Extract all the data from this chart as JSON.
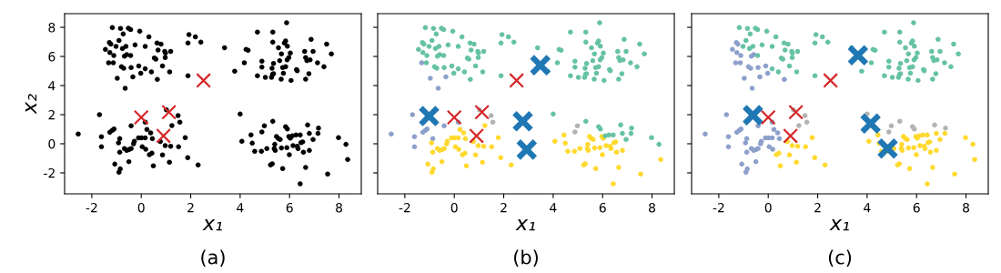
{
  "chart_data": [
    {
      "type": "scatter",
      "title": "(a)",
      "xlabel": "x₁",
      "ylabel": "x₂",
      "xlim": [
        -3.1,
        8.9
      ],
      "ylim": [
        -3.44,
        8.94
      ],
      "xticks": [
        -2,
        0,
        2,
        4,
        6,
        8
      ],
      "yticks": [
        -2,
        0,
        2,
        4,
        6,
        8
      ],
      "grid": false,
      "legend": false,
      "series": [
        {
          "type": "scatter",
          "marker": "circle",
          "color": "#000000",
          "x": [
            -1.17,
            -0.84,
            -0.52,
            -0.43,
            -0.06,
            -0.73,
            0.31,
            -0.9,
            -1.29,
            -1.23,
            -1.45,
            -1.02,
            -0.76,
            -0.62,
            -0.25,
            0.16,
            0.64,
            0.8,
            0.68,
            0.95,
            1.19,
            -1.27,
            -1.11,
            -0.68,
            -0.59,
            -0.43,
            0.53,
            0.59,
            0.97,
            0.98,
            -1.32,
            -1.13,
            -0.8,
            -0.71,
            -0.41,
            -0.1,
            0.16,
            0.86,
            0.41,
            1.15,
            -0.02,
            -0.34,
            -0.97,
            0.65,
            -0.65,
            1.93,
            2.19,
            1.89,
            2.41,
            1.89,
            3.37,
            5.88,
            4.7,
            5.32,
            5.84,
            5.79,
            5.32,
            5.55,
            5.91,
            6.87,
            7.5,
            7.69,
            4.24,
            4.32,
            5.67,
            6.03,
            6.61,
            6.95,
            4.88,
            5.35,
            5.6,
            5.9,
            5.97,
            5.84,
            5.72,
            6.65,
            6.7,
            6.83,
            7.13,
            7.39,
            6.28,
            6.31,
            4.17,
            3.78,
            4.88,
            5.29,
            4.7,
            5.02,
            5.27,
            5.31,
            5.66,
            6.06,
            6.65,
            6.78,
            5.75,
            5.35,
            -1.69,
            -2.55,
            -1.61,
            -1.61,
            -1.27,
            -1.17,
            -1.1,
            -0.87,
            -0.92,
            -0.87,
            -0.68,
            -0.59,
            -0.49,
            -0.41,
            -0.28,
            -0.31,
            -0.11,
            0.01,
            0.16,
            0.23,
            0.38,
            0.45,
            0.04,
            0.18,
            0.33,
            0.43,
            0.49,
            -0.5,
            -1.07,
            -0.85,
            -0.9,
            -0.41,
            0.16,
            1.02,
            1.49,
            1.56,
            1.24,
            0.77,
            0.97,
            1.19,
            1.51,
            1.78,
            0.86,
            1.14,
            1.88,
            2.3,
            4.0,
            4.07,
            4.44,
            4.49,
            4.59,
            4.86,
            4.98,
            4.88,
            5.08,
            5.32,
            5.47,
            5.55,
            5.62,
            5.4,
            5.38,
            5.42,
            5.67,
            5.89,
            5.84,
            5.91,
            5.97,
            6.03,
            6.11,
            6.26,
            6.43,
            6.14,
            5.99,
            6.31,
            6.46,
            6.53,
            6.34,
            6.56,
            6.8,
            6.73,
            6.8,
            6.95,
            7.15,
            7.17,
            7.98,
            8.28,
            8.35,
            7.54,
            6.65,
            6.43,
            5.72,
            5.3,
            5.23
          ],
          "values": [
            7.98,
            7.92,
            7.94,
            7.85,
            7.73,
            7.54,
            7.35,
            7.1,
            6.96,
            6.85,
            6.48,
            6.69,
            6.54,
            6.69,
            6.79,
            6.69,
            6.92,
            6.85,
            6.44,
            6.35,
            6.35,
            6.27,
            6.06,
            6.02,
            6.13,
            6.06,
            5.89,
            5.81,
            5.92,
            6.23,
            5.56,
            5.56,
            5.29,
            5.19,
            5.23,
            5.35,
            5.15,
            5.35,
            4.94,
            4.94,
            4.85,
            4.6,
            4.5,
            4.42,
            3.81,
            7.5,
            7.35,
            6.92,
            6.98,
            4.67,
            6.6,
            8.31,
            7.67,
            7.67,
            7.06,
            6.92,
            6.98,
            6.6,
            6.71,
            7.17,
            6.85,
            6.17,
            6.48,
            6.42,
            6.17,
            6.23,
            6.35,
            6.35,
            5.67,
            5.52,
            5.71,
            5.77,
            5.92,
            5.29,
            5.23,
            5.92,
            5.71,
            5.77,
            5.56,
            5.29,
            5.1,
            5.02,
            5.56,
            4.98,
            5.27,
            5.19,
            4.67,
            4.56,
            4.56,
            4.77,
            4.44,
            4.35,
            4.44,
            4.81,
            4.85,
            4.81,
            2.0,
            0.67,
            0.48,
            -0.21,
            0.79,
            0.92,
            1.02,
            0.35,
            0.06,
            -0.58,
            -0.33,
            -0.46,
            -0.4,
            -0.33,
            0.17,
            0.0,
            0.4,
            0.4,
            0.4,
            0.98,
            0.75,
            0.35,
            -0.21,
            -0.38,
            -0.75,
            -0.65,
            -1.52,
            -1.23,
            -1.4,
            -1.73,
            -1.96,
            1.23,
            1.48,
            2.33,
            1.94,
            1.48,
            1.25,
            0.15,
            -0.13,
            -0.17,
            -0.21,
            0.42,
            -0.77,
            -1.27,
            -0.96,
            -1.46,
            2.04,
            0.17,
            0.6,
            0.04,
            -0.52,
            -0.52,
            1.23,
            0.81,
            -0.33,
            1.54,
            0.5,
            0.35,
            0.29,
            -0.04,
            -0.33,
            -0.46,
            -0.29,
            -0.27,
            1.17,
            1.02,
            0.5,
            0.38,
            0.54,
            0.6,
            0.6,
            -0.13,
            -0.75,
            -0.17,
            0.08,
            0.13,
            -0.33,
            -0.58,
            -0.46,
            1.29,
            0.71,
            0.29,
            0.71,
            1.08,
            0.42,
            -0.04,
            -1.08,
            -2.08,
            -1.63,
            -2.75,
            -1.71,
            -1.38,
            -1.46
          ]
        },
        {
          "type": "scatter",
          "marker": "cross",
          "color": "#d62728",
          "x": [
            0.0,
            1.12,
            0.9,
            2.52
          ],
          "values": [
            1.81,
            2.17,
            0.54,
            4.35
          ]
        }
      ]
    },
    {
      "type": "scatter",
      "title": "(b)",
      "xlabel": "x₁",
      "xlim": [
        -3.1,
        8.9
      ],
      "ylim": [
        -3.44,
        8.94
      ],
      "xticks": [
        -2,
        0,
        2,
        4,
        6,
        8
      ],
      "yticks": [
        -2,
        0,
        2,
        4,
        6,
        8
      ],
      "tick_labels": "x",
      "grid": false,
      "legend": false,
      "series": [
        {
          "type": "scatter",
          "marker": "circle",
          "x": [
            -1.17,
            -0.84,
            -0.52,
            -0.43,
            -0.06,
            -0.73,
            0.31,
            -0.9,
            -1.29,
            -1.23,
            -1.45,
            -1.02,
            -0.76,
            -0.62,
            -0.25,
            0.16,
            0.64,
            0.8,
            0.68,
            0.95,
            1.19,
            -1.27,
            -1.11,
            -0.68,
            -0.59,
            -0.43,
            0.53,
            0.59,
            0.97,
            0.98,
            -1.32,
            -1.13,
            -0.8,
            -0.71,
            -0.41,
            -0.1,
            0.16,
            0.86,
            0.41,
            1.15,
            -0.02,
            -0.34,
            -0.97,
            0.65,
            -0.65,
            1.93,
            2.19,
            1.89,
            2.41,
            1.89,
            3.37,
            5.88,
            4.7,
            5.32,
            5.84,
            5.79,
            5.32,
            5.55,
            5.91,
            6.87,
            7.5,
            7.69,
            4.24,
            4.32,
            5.67,
            6.03,
            6.61,
            6.95,
            4.88,
            5.35,
            5.6,
            5.9,
            5.97,
            5.84,
            5.72,
            6.65,
            6.7,
            6.83,
            7.13,
            7.39,
            6.28,
            6.31,
            4.17,
            3.78,
            4.88,
            5.29,
            4.7,
            5.02,
            5.27,
            5.31,
            5.66,
            6.06,
            6.65,
            6.78,
            5.75,
            5.35,
            -1.69,
            -2.55,
            -1.61,
            -1.61,
            -1.27,
            -1.17,
            -1.1,
            -0.87,
            -0.92,
            -0.87,
            -0.68,
            -0.59,
            -0.49,
            -0.41,
            -0.28,
            -0.31,
            -0.11,
            0.01,
            0.16,
            0.23,
            0.38,
            0.45,
            0.04,
            0.18,
            0.33,
            0.43,
            0.49,
            -0.5,
            -1.07,
            -0.85,
            -0.9,
            -0.41,
            0.16,
            1.02,
            1.49,
            1.56,
            1.24,
            0.77,
            0.97,
            1.19,
            1.51,
            1.78,
            0.86,
            1.14,
            1.88,
            2.3,
            4.0,
            4.07,
            4.44,
            4.49,
            4.59,
            4.86,
            4.98,
            4.88,
            5.08,
            5.32,
            5.47,
            5.55,
            5.62,
            5.4,
            5.38,
            5.42,
            5.67,
            5.89,
            5.84,
            5.91,
            5.97,
            6.03,
            6.11,
            6.26,
            6.43,
            6.14,
            5.99,
            6.31,
            6.46,
            6.53,
            6.34,
            6.56,
            6.8,
            6.73,
            6.8,
            6.95,
            7.15,
            7.17,
            7.98,
            8.28,
            8.35,
            7.54,
            6.65,
            6.43,
            5.72,
            5.3,
            5.23
          ],
          "values": [
            7.98,
            7.92,
            7.94,
            7.85,
            7.73,
            7.54,
            7.35,
            7.1,
            6.96,
            6.85,
            6.48,
            6.69,
            6.54,
            6.69,
            6.79,
            6.69,
            6.92,
            6.85,
            6.44,
            6.35,
            6.35,
            6.27,
            6.06,
            6.02,
            6.13,
            6.06,
            5.89,
            5.81,
            5.92,
            6.23,
            5.56,
            5.56,
            5.29,
            5.19,
            5.23,
            5.35,
            5.15,
            5.35,
            4.94,
            4.94,
            4.85,
            4.6,
            4.5,
            4.42,
            3.81,
            7.5,
            7.35,
            6.92,
            6.98,
            4.67,
            6.6,
            8.31,
            7.67,
            7.67,
            7.06,
            6.92,
            6.98,
            6.6,
            6.71,
            7.17,
            6.85,
            6.17,
            6.48,
            6.42,
            6.17,
            6.23,
            6.35,
            6.35,
            5.67,
            5.52,
            5.71,
            5.77,
            5.92,
            5.29,
            5.23,
            5.92,
            5.71,
            5.77,
            5.56,
            5.29,
            5.1,
            5.02,
            5.56,
            4.98,
            5.27,
            5.19,
            4.67,
            4.56,
            4.56,
            4.77,
            4.44,
            4.35,
            4.44,
            4.81,
            4.85,
            4.81,
            2.0,
            0.67,
            0.48,
            -0.21,
            0.79,
            0.92,
            1.02,
            0.35,
            0.06,
            -0.58,
            -0.33,
            -0.46,
            -0.4,
            -0.33,
            0.17,
            0.0,
            0.4,
            0.4,
            0.4,
            0.98,
            0.75,
            0.35,
            -0.21,
            -0.38,
            -0.75,
            -0.65,
            -1.52,
            -1.23,
            -1.4,
            -1.73,
            -1.96,
            1.23,
            1.48,
            2.33,
            1.94,
            1.48,
            1.25,
            0.15,
            -0.13,
            -0.17,
            -0.21,
            0.42,
            -0.77,
            -1.27,
            -0.96,
            -1.46,
            2.04,
            0.17,
            0.6,
            0.04,
            -0.52,
            -0.52,
            1.23,
            0.81,
            -0.33,
            1.54,
            0.5,
            0.35,
            0.29,
            -0.04,
            -0.33,
            -0.46,
            -0.29,
            -0.27,
            1.17,
            1.02,
            0.5,
            0.38,
            0.54,
            0.6,
            0.6,
            -0.13,
            -0.75,
            -0.17,
            0.08,
            0.13,
            -0.33,
            -0.58,
            -0.46,
            1.29,
            0.71,
            0.29,
            0.71,
            1.08,
            0.42,
            -0.04,
            -1.08,
            -2.08,
            -1.63,
            -2.75,
            -1.71,
            -1.38,
            -1.46
          ],
          "colors": [
            "#66c2a5",
            "#66c2a5",
            "#66c2a5",
            "#66c2a5",
            "#66c2a5",
            "#66c2a5",
            "#66c2a5",
            "#66c2a5",
            "#66c2a5",
            "#66c2a5",
            "#66c2a5",
            "#66c2a5",
            "#66c2a5",
            "#66c2a5",
            "#66c2a5",
            "#66c2a5",
            "#66c2a5",
            "#66c2a5",
            "#66c2a5",
            "#66c2a5",
            "#66c2a5",
            "#66c2a5",
            "#66c2a5",
            "#66c2a5",
            "#66c2a5",
            "#66c2a5",
            "#66c2a5",
            "#66c2a5",
            "#66c2a5",
            "#66c2a5",
            "#8da0cb",
            "#66c2a5",
            "#66c2a5",
            "#66c2a5",
            "#66c2a5",
            "#66c2a5",
            "#66c2a5",
            "#66c2a5",
            "#66c2a5",
            "#66c2a5",
            "#66c2a5",
            "#8da0cb",
            "#8da0cb",
            "#66c2a5",
            "#8da0cb",
            "#66c2a5",
            "#66c2a5",
            "#66c2a5",
            "#66c2a5",
            "#66c2a5",
            "#66c2a5",
            "#66c2a5",
            "#66c2a5",
            "#66c2a5",
            "#66c2a5",
            "#66c2a5",
            "#66c2a5",
            "#66c2a5",
            "#66c2a5",
            "#66c2a5",
            "#66c2a5",
            "#66c2a5",
            "#66c2a5",
            "#66c2a5",
            "#66c2a5",
            "#66c2a5",
            "#66c2a5",
            "#66c2a5",
            "#66c2a5",
            "#66c2a5",
            "#66c2a5",
            "#66c2a5",
            "#66c2a5",
            "#66c2a5",
            "#66c2a5",
            "#66c2a5",
            "#66c2a5",
            "#66c2a5",
            "#66c2a5",
            "#66c2a5",
            "#66c2a5",
            "#66c2a5",
            "#66c2a5",
            "#66c2a5",
            "#66c2a5",
            "#66c2a5",
            "#66c2a5",
            "#66c2a5",
            "#66c2a5",
            "#66c2a5",
            "#66c2a5",
            "#66c2a5",
            "#66c2a5",
            "#66c2a5",
            "#66c2a5",
            "#66c2a5",
            "#8da0cb",
            "#8da0cb",
            "#8da0cb",
            "#8da0cb",
            "#8da0cb",
            "#8da0cb",
            "#8da0cb",
            "#8da0cb",
            "#ffd92f",
            "#ffd92f",
            "#ffd92f",
            "#ffd92f",
            "#ffd92f",
            "#ffd92f",
            "#ffd92f",
            "#ffd92f",
            "#ffd92f",
            "#ffd92f",
            "#ffd92f",
            "#ffd92f",
            "#ffd92f",
            "#ffd92f",
            "#ffd92f",
            "#ffd92f",
            "#ffd92f",
            "#ffd92f",
            "#ffd92f",
            "#ffd92f",
            "#ffd92f",
            "#ffd92f",
            "#ffd92f",
            "#8da0cb",
            "#8da0cb",
            "#b3b3b3",
            "#b3b3b3",
            "#b3b3b3",
            "#ffd92f",
            "#ffd92f",
            "#ffd92f",
            "#ffd92f",
            "#ffd92f",
            "#ffd92f",
            "#ffd92f",
            "#ffd92f",
            "#ffd92f",
            "#ffd92f",
            "#66c2a5",
            "#ffd92f",
            "#ffd92f",
            "#ffd92f",
            "#ffd92f",
            "#ffd92f",
            "#b3b3b3",
            "#b3b3b3",
            "#ffd92f",
            "#66c2a5",
            "#ffd92f",
            "#ffd92f",
            "#ffd92f",
            "#ffd92f",
            "#ffd92f",
            "#ffd92f",
            "#ffd92f",
            "#ffd92f",
            "#66c2a5",
            "#66c2a5",
            "#ffd92f",
            "#ffd92f",
            "#66c2a5",
            "#66c2a5",
            "#66c2a5",
            "#ffd92f",
            "#ffd92f",
            "#ffd92f",
            "#ffd92f",
            "#ffd92f",
            "#ffd92f",
            "#ffd92f",
            "#ffd92f",
            "#66c2a5",
            "#66c2a5",
            "#66c2a5",
            "#66c2a5",
            "#66c2a5",
            "#66c2a5",
            "#66c2a5",
            "#ffd92f",
            "#ffd92f",
            "#ffd92f",
            "#ffd92f",
            "#ffd92f",
            "#ffd92f",
            "#ffd92f"
          ]
        },
        {
          "type": "scatter",
          "marker": "cross",
          "color": "#d62728",
          "x": [
            0.0,
            1.12,
            0.9,
            2.52
          ],
          "values": [
            1.81,
            2.17,
            0.54,
            4.35
          ]
        },
        {
          "type": "scatter",
          "marker": "cross",
          "color": "#1f77b4",
          "x": [
            3.48,
            -1.02,
            2.77,
            2.93
          ],
          "values": [
            5.4,
            1.9,
            1.54,
            -0.4
          ]
        }
      ]
    },
    {
      "type": "scatter",
      "title": "(c)",
      "xlabel": "x₁",
      "xlim": [
        -3.1,
        8.9
      ],
      "ylim": [
        -3.44,
        8.94
      ],
      "xticks": [
        -2,
        0,
        2,
        4,
        6,
        8
      ],
      "yticks": [
        -2,
        0,
        2,
        4,
        6,
        8
      ],
      "tick_labels": "x",
      "grid": false,
      "legend": false,
      "series": [
        {
          "type": "scatter",
          "marker": "circle",
          "x": [
            -1.17,
            -0.84,
            -0.52,
            -0.43,
            -0.06,
            -0.73,
            0.31,
            -0.9,
            -1.29,
            -1.23,
            -1.45,
            -1.02,
            -0.76,
            -0.62,
            -0.25,
            0.16,
            0.64,
            0.8,
            0.68,
            0.95,
            1.19,
            -1.27,
            -1.11,
            -0.68,
            -0.59,
            -0.43,
            0.53,
            0.59,
            0.97,
            0.98,
            -1.32,
            -1.13,
            -0.8,
            -0.71,
            -0.41,
            -0.1,
            0.16,
            0.86,
            0.41,
            1.15,
            -0.02,
            -0.34,
            -0.97,
            0.65,
            -0.65,
            1.93,
            2.19,
            1.89,
            2.41,
            1.89,
            3.37,
            5.88,
            4.7,
            5.32,
            5.84,
            5.79,
            5.32,
            5.55,
            5.91,
            6.87,
            7.5,
            7.69,
            4.24,
            4.32,
            5.67,
            6.03,
            6.61,
            6.95,
            4.88,
            5.35,
            5.6,
            5.9,
            5.97,
            5.84,
            5.72,
            6.65,
            6.7,
            6.83,
            7.13,
            7.39,
            6.28,
            6.31,
            4.17,
            3.78,
            4.88,
            5.29,
            4.7,
            5.02,
            5.27,
            5.31,
            5.66,
            6.06,
            6.65,
            6.78,
            5.75,
            5.35,
            -1.69,
            -2.55,
            -1.61,
            -1.61,
            -1.27,
            -1.17,
            -1.1,
            -0.87,
            -0.92,
            -0.87,
            -0.68,
            -0.59,
            -0.49,
            -0.41,
            -0.28,
            -0.31,
            -0.11,
            0.01,
            0.16,
            0.23,
            0.38,
            0.45,
            0.04,
            0.18,
            0.33,
            0.43,
            0.49,
            -0.5,
            -1.07,
            -0.85,
            -0.9,
            -0.41,
            0.16,
            1.02,
            1.49,
            1.56,
            1.24,
            0.77,
            0.97,
            1.19,
            1.51,
            1.78,
            0.86,
            1.14,
            1.88,
            2.3,
            4.0,
            4.07,
            4.44,
            4.49,
            4.59,
            4.86,
            4.98,
            4.88,
            5.08,
            5.32,
            5.47,
            5.55,
            5.62,
            5.4,
            5.38,
            5.42,
            5.67,
            5.89,
            5.84,
            5.91,
            5.97,
            6.03,
            6.11,
            6.26,
            6.43,
            6.14,
            5.99,
            6.31,
            6.46,
            6.53,
            6.34,
            6.56,
            6.8,
            6.73,
            6.8,
            6.95,
            7.15,
            7.17,
            7.98,
            8.28,
            8.35,
            7.54,
            6.65,
            6.43,
            5.72,
            5.3,
            5.23
          ],
          "values": [
            7.98,
            7.92,
            7.94,
            7.85,
            7.73,
            7.54,
            7.35,
            7.1,
            6.96,
            6.85,
            6.48,
            6.69,
            6.54,
            6.69,
            6.79,
            6.69,
            6.92,
            6.85,
            6.44,
            6.35,
            6.35,
            6.27,
            6.06,
            6.02,
            6.13,
            6.06,
            5.89,
            5.81,
            5.92,
            6.23,
            5.56,
            5.56,
            5.29,
            5.19,
            5.23,
            5.35,
            5.15,
            5.35,
            4.94,
            4.94,
            4.85,
            4.6,
            4.5,
            4.42,
            3.81,
            7.5,
            7.35,
            6.92,
            6.98,
            4.67,
            6.6,
            8.31,
            7.67,
            7.67,
            7.06,
            6.92,
            6.98,
            6.6,
            6.71,
            7.17,
            6.85,
            6.17,
            6.48,
            6.42,
            6.17,
            6.23,
            6.35,
            6.35,
            5.67,
            5.52,
            5.71,
            5.77,
            5.92,
            5.29,
            5.23,
            5.92,
            5.71,
            5.77,
            5.56,
            5.29,
            5.1,
            5.02,
            5.56,
            4.98,
            5.27,
            5.19,
            4.67,
            4.56,
            4.56,
            4.77,
            4.44,
            4.35,
            4.44,
            4.81,
            4.85,
            4.81,
            2.0,
            0.67,
            0.48,
            -0.21,
            0.79,
            0.92,
            1.02,
            0.35,
            0.06,
            -0.58,
            -0.33,
            -0.46,
            -0.4,
            -0.33,
            0.17,
            0.0,
            0.4,
            0.4,
            0.4,
            0.98,
            0.75,
            0.35,
            -0.21,
            -0.38,
            -0.75,
            -0.65,
            -1.52,
            -1.23,
            -1.4,
            -1.73,
            -1.96,
            1.23,
            1.48,
            2.33,
            1.94,
            1.48,
            1.25,
            0.15,
            -0.13,
            -0.17,
            -0.21,
            0.42,
            -0.77,
            -1.27,
            -0.96,
            -1.46,
            2.04,
            0.17,
            0.6,
            0.04,
            -0.52,
            -0.52,
            1.23,
            0.81,
            -0.33,
            1.54,
            0.5,
            0.35,
            0.29,
            -0.04,
            -0.33,
            -0.46,
            -0.29,
            -0.27,
            1.17,
            1.02,
            0.5,
            0.38,
            0.54,
            0.6,
            0.6,
            -0.13,
            -0.75,
            -0.17,
            0.08,
            0.13,
            -0.33,
            -0.58,
            -0.46,
            1.29,
            0.71,
            0.29,
            0.71,
            1.08,
            0.42,
            -0.04,
            -1.08,
            -2.08,
            -1.63,
            -2.75,
            -1.71,
            -1.38,
            -1.46
          ],
          "colors": [
            "#66c2a5",
            "#66c2a5",
            "#66c2a5",
            "#66c2a5",
            "#66c2a5",
            "#66c2a5",
            "#66c2a5",
            "#66c2a5",
            "#8da0cb",
            "#8da0cb",
            "#8da0cb",
            "#66c2a5",
            "#66c2a5",
            "#66c2a5",
            "#66c2a5",
            "#66c2a5",
            "#66c2a5",
            "#66c2a5",
            "#66c2a5",
            "#66c2a5",
            "#66c2a5",
            "#8da0cb",
            "#8da0cb",
            "#8da0cb",
            "#8da0cb",
            "#66c2a5",
            "#66c2a5",
            "#66c2a5",
            "#66c2a5",
            "#66c2a5",
            "#8da0cb",
            "#8da0cb",
            "#8da0cb",
            "#8da0cb",
            "#8da0cb",
            "#8da0cb",
            "#66c2a5",
            "#66c2a5",
            "#66c2a5",
            "#66c2a5",
            "#8da0cb",
            "#8da0cb",
            "#8da0cb",
            "#8da0cb",
            "#8da0cb",
            "#66c2a5",
            "#66c2a5",
            "#66c2a5",
            "#66c2a5",
            "#66c2a5",
            "#66c2a5",
            "#66c2a5",
            "#66c2a5",
            "#66c2a5",
            "#66c2a5",
            "#66c2a5",
            "#66c2a5",
            "#66c2a5",
            "#66c2a5",
            "#66c2a5",
            "#66c2a5",
            "#66c2a5",
            "#66c2a5",
            "#66c2a5",
            "#66c2a5",
            "#66c2a5",
            "#66c2a5",
            "#66c2a5",
            "#66c2a5",
            "#66c2a5",
            "#66c2a5",
            "#66c2a5",
            "#66c2a5",
            "#66c2a5",
            "#66c2a5",
            "#66c2a5",
            "#66c2a5",
            "#66c2a5",
            "#66c2a5",
            "#66c2a5",
            "#66c2a5",
            "#66c2a5",
            "#66c2a5",
            "#66c2a5",
            "#66c2a5",
            "#66c2a5",
            "#66c2a5",
            "#66c2a5",
            "#66c2a5",
            "#66c2a5",
            "#66c2a5",
            "#66c2a5",
            "#66c2a5",
            "#66c2a5",
            "#66c2a5",
            "#66c2a5",
            "#8da0cb",
            "#8da0cb",
            "#8da0cb",
            "#8da0cb",
            "#8da0cb",
            "#8da0cb",
            "#8da0cb",
            "#8da0cb",
            "#8da0cb",
            "#8da0cb",
            "#8da0cb",
            "#8da0cb",
            "#8da0cb",
            "#8da0cb",
            "#8da0cb",
            "#8da0cb",
            "#8da0cb",
            "#8da0cb",
            "#8da0cb",
            "#8da0cb",
            "#8da0cb",
            "#8da0cb",
            "#8da0cb",
            "#8da0cb",
            "#ffd92f",
            "#ffd92f",
            "#ffd92f",
            "#8da0cb",
            "#8da0cb",
            "#8da0cb",
            "#8da0cb",
            "#8da0cb",
            "#8da0cb",
            "#b3b3b3",
            "#b3b3b3",
            "#b3b3b3",
            "#b3b3b3",
            "#ffd92f",
            "#ffd92f",
            "#ffd92f",
            "#ffd92f",
            "#ffd92f",
            "#ffd92f",
            "#ffd92f",
            "#ffd92f",
            "#ffd92f",
            "#b3b3b3",
            "#ffd92f",
            "#ffd92f",
            "#ffd92f",
            "#ffd92f",
            "#ffd92f",
            "#b3b3b3",
            "#b3b3b3",
            "#ffd92f",
            "#b3b3b3",
            "#ffd92f",
            "#ffd92f",
            "#ffd92f",
            "#ffd92f",
            "#ffd92f",
            "#ffd92f",
            "#ffd92f",
            "#ffd92f",
            "#b3b3b3",
            "#b3b3b3",
            "#ffd92f",
            "#ffd92f",
            "#ffd92f",
            "#ffd92f",
            "#ffd92f",
            "#ffd92f",
            "#ffd92f",
            "#ffd92f",
            "#ffd92f",
            "#ffd92f",
            "#ffd92f",
            "#ffd92f",
            "#ffd92f",
            "#b3b3b3",
            "#ffd92f",
            "#ffd92f",
            "#ffd92f",
            "#b3b3b3",
            "#ffd92f",
            "#ffd92f",
            "#ffd92f",
            "#ffd92f",
            "#ffd92f",
            "#ffd92f",
            "#ffd92f",
            "#ffd92f",
            "#ffd92f"
          ]
        },
        {
          "type": "scatter",
          "marker": "cross",
          "color": "#d62728",
          "x": [
            0.0,
            1.12,
            0.9,
            2.52
          ],
          "values": [
            1.81,
            2.17,
            0.54,
            4.35
          ]
        },
        {
          "type": "scatter",
          "marker": "cross",
          "color": "#1f77b4",
          "x": [
            3.63,
            -0.62,
            4.14,
            4.83
          ],
          "values": [
            6.08,
            1.96,
            1.39,
            -0.33
          ]
        }
      ]
    }
  ]
}
